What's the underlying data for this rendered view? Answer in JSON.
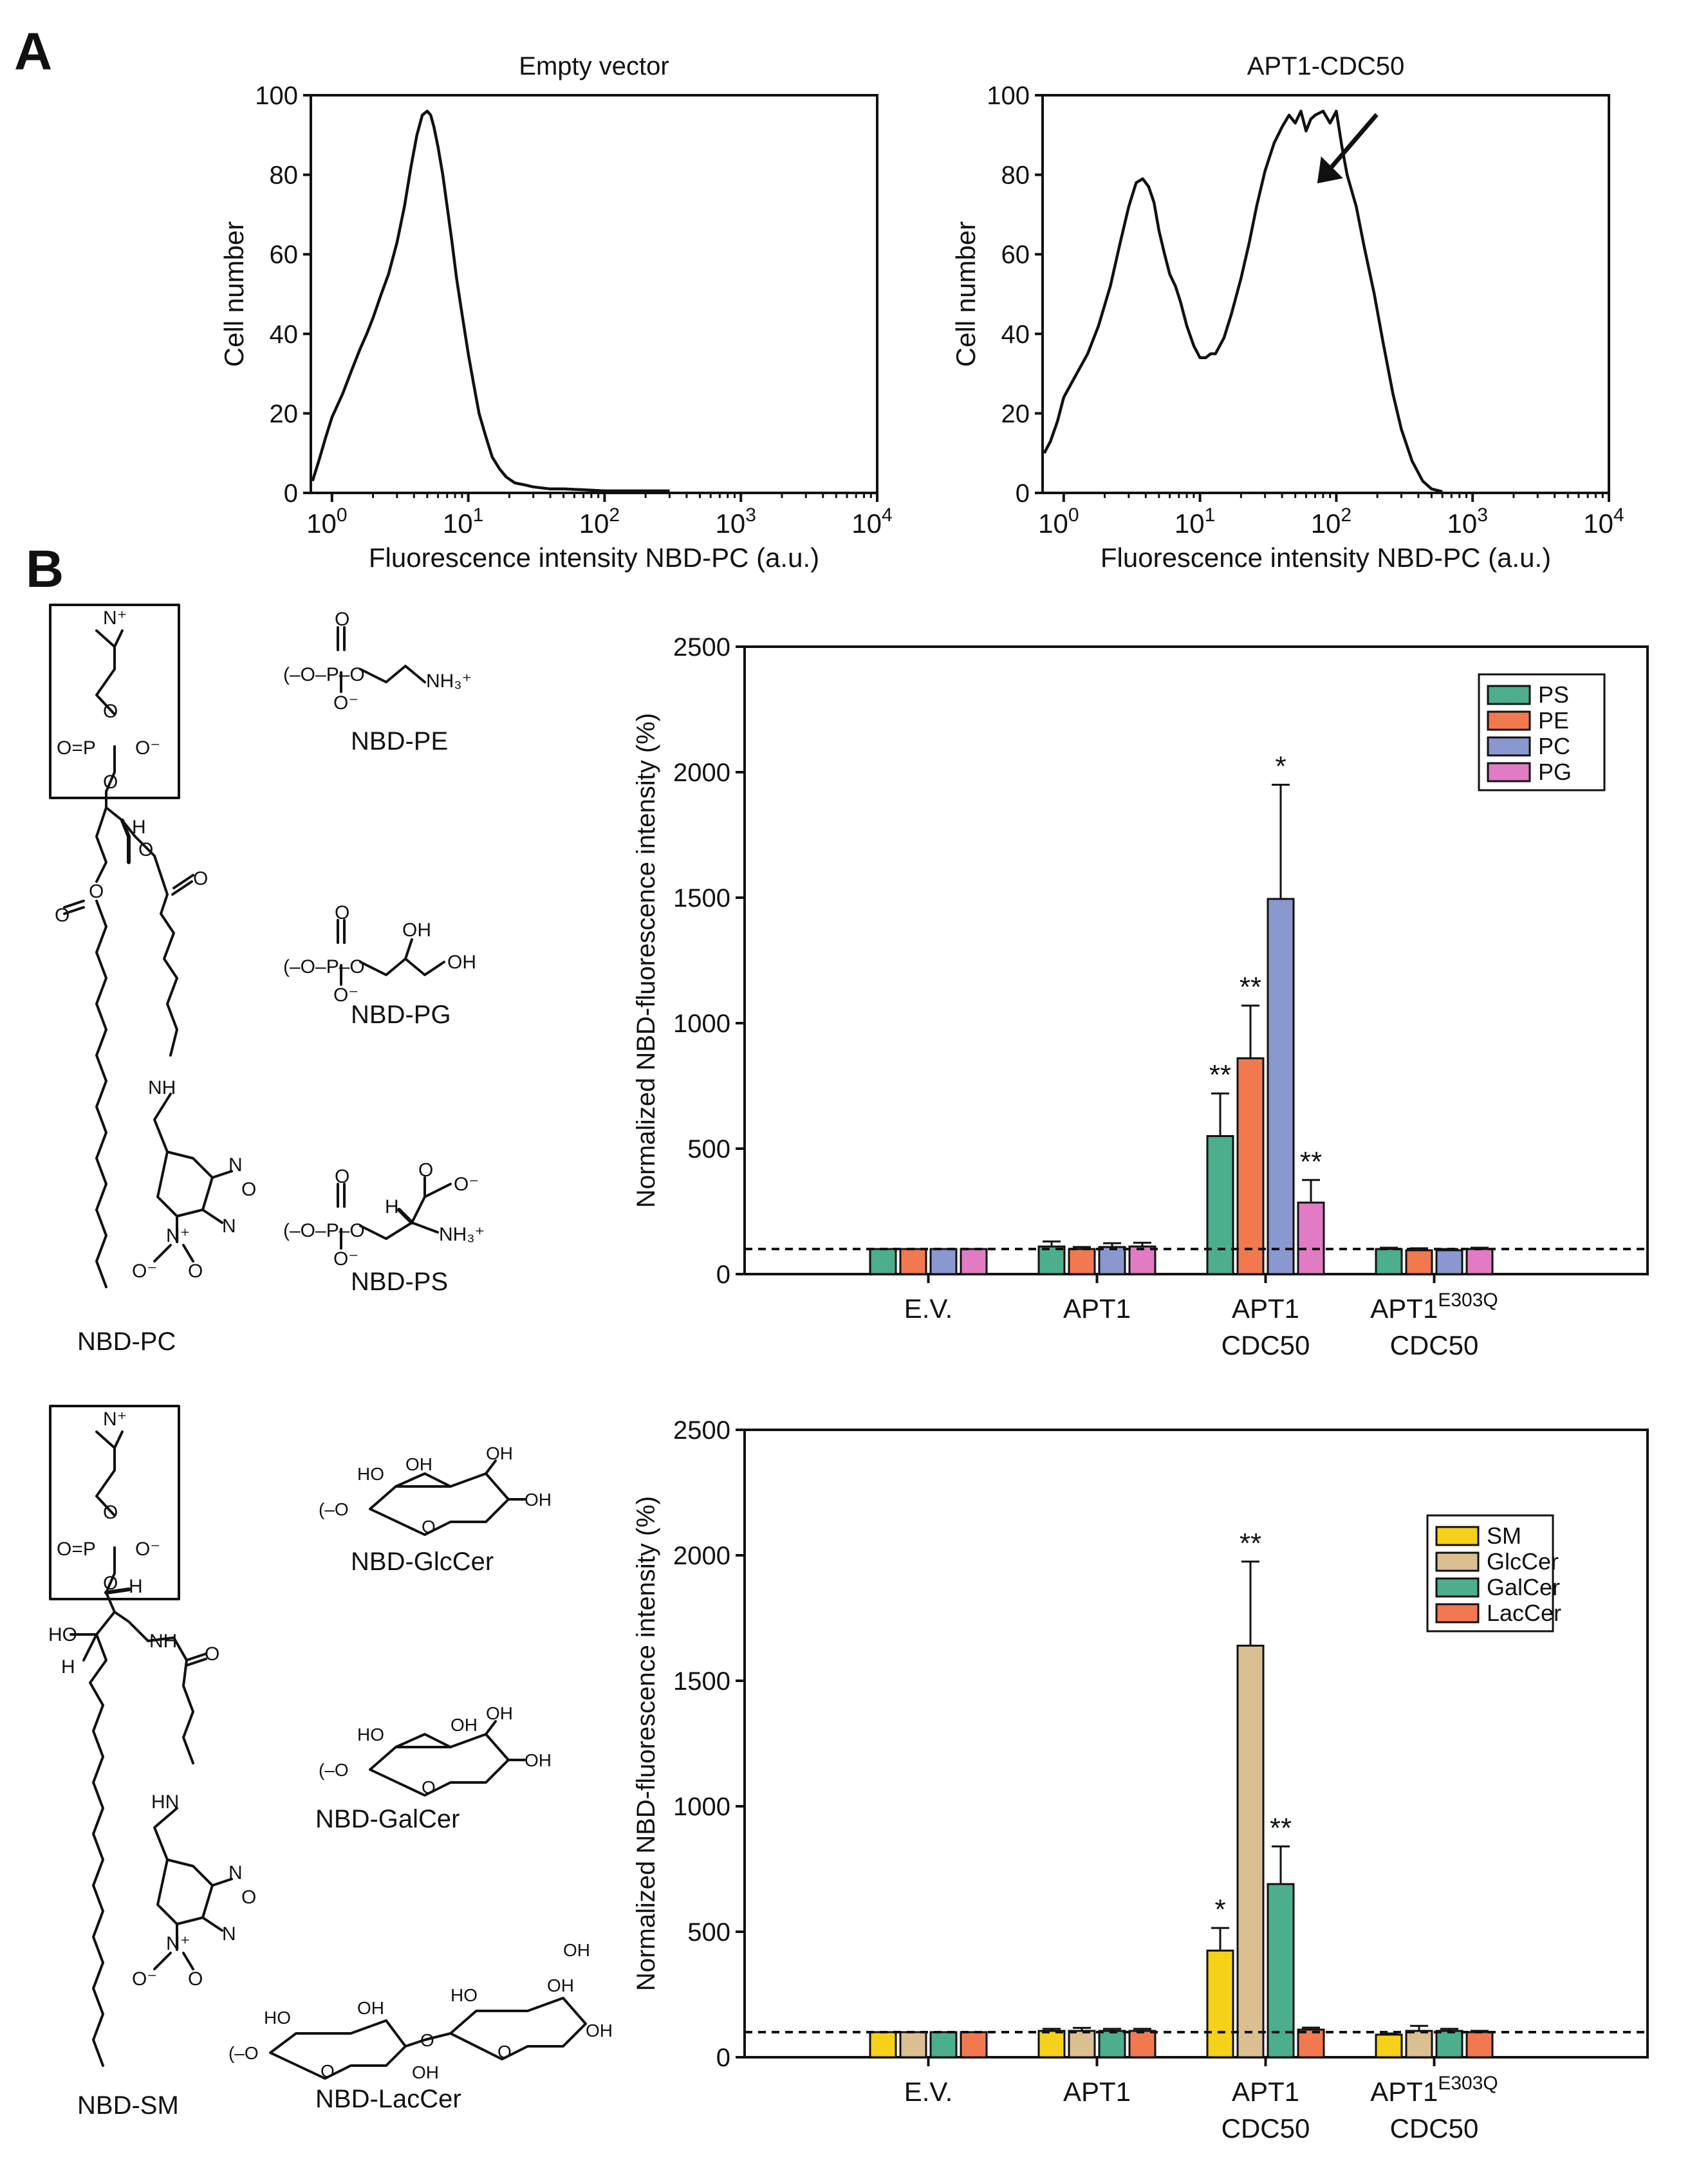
{
  "panels": {
    "a": "A",
    "b": "B"
  },
  "colors": {
    "PS": "#4cae8c",
    "PE": "#f2794f",
    "PC": "#8a98d0",
    "PG": "#e07bc4",
    "SM": "#f6d11a",
    "GlcCer": "#dbbf91",
    "GalCer": "#4cae8c",
    "LacCer": "#f2794f"
  },
  "chart_data": [
    {
      "type": "line",
      "title": "Empty vector",
      "xlabel": "Fluorescence intensity NBD-PC (a.u.)",
      "ylabel": "Cell number",
      "xscale": "log",
      "xlim": [
        0.7,
        10000
      ],
      "ylim": [
        0,
        100
      ],
      "yticks": [
        "0",
        "20",
        "40",
        "60",
        "80",
        "100"
      ],
      "xticks": [
        {
          "base": "10",
          "exp": "0"
        },
        {
          "base": "10",
          "exp": "1"
        },
        {
          "base": "10",
          "exp": "2"
        },
        {
          "base": "10",
          "exp": "3"
        },
        {
          "base": "10",
          "exp": "4"
        }
      ],
      "x": [
        0.72,
        0.8,
        0.9,
        1.0,
        1.2,
        1.4,
        1.6,
        1.8,
        2.0,
        2.3,
        2.6,
        3.0,
        3.4,
        3.8,
        4.2,
        4.6,
        5.0,
        5.3,
        5.6,
        6.0,
        6.5,
        7.0,
        7.6,
        8.2,
        9.0,
        10,
        11,
        12,
        13.5,
        15,
        17,
        19,
        22,
        26,
        30,
        40,
        50,
        70,
        100,
        150,
        300
      ],
      "y": [
        3,
        8,
        14,
        19,
        25,
        31,
        36,
        40,
        44,
        50,
        55,
        63,
        72,
        82,
        90,
        95,
        96,
        95,
        92,
        87,
        80,
        72,
        63,
        54,
        45,
        35,
        27,
        20,
        14,
        9,
        6,
        4,
        2.5,
        2,
        1.5,
        1,
        1,
        0.8,
        0.5,
        0.5,
        0.5
      ]
    },
    {
      "type": "line",
      "title": "APT1-CDC50",
      "xlabel": "Fluorescence intensity NBD-PC (a.u.)",
      "ylabel": "Cell number",
      "xscale": "log",
      "xlim": [
        0.7,
        10000
      ],
      "ylim": [
        0,
        100
      ],
      "yticks": [
        "0",
        "20",
        "40",
        "60",
        "80",
        "100"
      ],
      "xticks": [
        {
          "base": "10",
          "exp": "0"
        },
        {
          "base": "10",
          "exp": "1"
        },
        {
          "base": "10",
          "exp": "2"
        },
        {
          "base": "10",
          "exp": "3"
        },
        {
          "base": "10",
          "exp": "4"
        }
      ],
      "annotation": "arrow pointing to high-intensity peak",
      "x": [
        0.72,
        0.8,
        0.9,
        1.0,
        1.2,
        1.5,
        1.8,
        2.2,
        2.6,
        3.0,
        3.4,
        3.8,
        4.2,
        4.6,
        5.0,
        5.5,
        6.0,
        6.6,
        7.2,
        8,
        9,
        10,
        11,
        12,
        13,
        15,
        17,
        20,
        23,
        26,
        30,
        35,
        40,
        45,
        50,
        55,
        60,
        65,
        70,
        80,
        90,
        100,
        110,
        120,
        140,
        160,
        190,
        220,
        260,
        300,
        360,
        430,
        500,
        600
      ],
      "y": [
        10,
        13,
        18,
        24,
        29,
        35,
        42,
        52,
        63,
        72,
        78,
        79,
        77,
        73,
        66,
        60,
        55,
        52,
        48,
        42,
        37,
        34,
        34,
        35,
        35,
        39,
        45,
        54,
        63,
        72,
        81,
        88,
        92,
        95,
        93,
        96,
        91,
        94,
        95,
        96,
        93,
        96,
        87,
        80,
        72,
        62,
        50,
        38,
        25,
        16,
        8,
        3,
        1,
        0.3
      ]
    },
    {
      "type": "bar",
      "ylabel": "Normalized NBD-fluorescence intensity (%)",
      "ylim": [
        0,
        2500
      ],
      "yticks": [
        "0",
        "500",
        "1000",
        "1500",
        "2000",
        "2500"
      ],
      "reference_line": 100,
      "categories": [
        {
          "line1": "E.V.",
          "line2": "",
          "sup": ""
        },
        {
          "line1": "APT1",
          "line2": "",
          "sup": ""
        },
        {
          "line1": "APT1",
          "line2": "CDC50",
          "sup": ""
        },
        {
          "line1": "APT1",
          "line2": "CDC50",
          "sup": "E303Q"
        }
      ],
      "series": [
        {
          "name": "PS",
          "values": [
            100,
            110,
            550,
            100
          ],
          "errors": [
            0,
            20,
            170,
            5
          ],
          "significance": [
            "",
            "",
            "**",
            ""
          ]
        },
        {
          "name": "PE",
          "values": [
            100,
            100,
            860,
            95
          ],
          "errors": [
            0,
            8,
            210,
            8
          ],
          "significance": [
            "",
            "",
            "**",
            ""
          ]
        },
        {
          "name": "PC",
          "values": [
            100,
            108,
            1495,
            95
          ],
          "errors": [
            0,
            15,
            455,
            5
          ],
          "significance": [
            "",
            "",
            "*",
            ""
          ]
        },
        {
          "name": "PG",
          "values": [
            100,
            110,
            285,
            100
          ],
          "errors": [
            0,
            15,
            90,
            5
          ],
          "significance": [
            "",
            "",
            "**",
            ""
          ]
        }
      ]
    },
    {
      "type": "bar",
      "ylabel": "Normalized NBD-fluorescence intensity (%)",
      "ylim": [
        0,
        2500
      ],
      "yticks": [
        "0",
        "500",
        "1000",
        "1500",
        "2000",
        "2500"
      ],
      "reference_line": 100,
      "categories": [
        {
          "line1": "E.V.",
          "line2": "",
          "sup": ""
        },
        {
          "line1": "APT1",
          "line2": "",
          "sup": ""
        },
        {
          "line1": "APT1",
          "line2": "CDC50",
          "sup": ""
        },
        {
          "line1": "APT1",
          "line2": "CDC50",
          "sup": "E303Q"
        }
      ],
      "series": [
        {
          "name": "SM",
          "values": [
            100,
            105,
            425,
            90
          ],
          "errors": [
            0,
            8,
            90,
            5
          ],
          "significance": [
            "",
            "",
            "*",
            ""
          ]
        },
        {
          "name": "GlcCer",
          "values": [
            100,
            105,
            1640,
            105
          ],
          "errors": [
            0,
            12,
            335,
            20
          ],
          "significance": [
            "",
            "",
            "**",
            ""
          ]
        },
        {
          "name": "GalCer",
          "values": [
            100,
            105,
            690,
            105
          ],
          "errors": [
            0,
            8,
            150,
            8
          ],
          "significance": [
            "",
            "",
            "**",
            ""
          ]
        },
        {
          "name": "LacCer",
          "values": [
            100,
            105,
            110,
            100
          ],
          "errors": [
            0,
            8,
            8,
            5
          ],
          "significance": [
            "",
            "",
            "",
            ""
          ]
        }
      ]
    }
  ],
  "structures": {
    "pc": {
      "name": "NBD-PC",
      "n_plus": "N⁺",
      "o1": "O",
      "o_eq_p": "O=P",
      "o_minus": "O⁻",
      "o2": "O",
      "h": "H",
      "o3": "O",
      "o4": "O",
      "o5": "O",
      "o6": "O",
      "nh": "NH",
      "n1": "N",
      "n2": "N",
      "o_ring": "O",
      "no2_n": "N⁺",
      "no2_o1": "O⁻",
      "no2_o2": "O"
    },
    "pe": {
      "name": "NBD-PE",
      "head": "(–O–P–O",
      "nh3": "NH₃⁺",
      "o_top": "O",
      "o_bot": "O⁻"
    },
    "pg": {
      "name": "NBD-PG",
      "head": "(–O–P–O",
      "oh1": "OH",
      "oh2": "OH",
      "o_top": "O",
      "o_bot": "O⁻"
    },
    "ps": {
      "name": "NBD-PS",
      "head": "(–O–P–O",
      "nh3": "NH₃⁺",
      "h": "H",
      "coo": "O⁻",
      "o_top": "O",
      "o_bot": "O⁻",
      "o_acid": "O"
    },
    "sm": {
      "name": "NBD-SM",
      "n_plus": "N⁺",
      "o1": "O",
      "o_eq_p": "O=P",
      "o_minus": "O⁻",
      "o2": "O",
      "ho": "HO",
      "h1": "H",
      "h2": "H",
      "nh": "NH",
      "o_amide": "O",
      "hn": "HN",
      "n1": "N",
      "n2": "N",
      "o_ring": "O",
      "no2_n": "N⁺",
      "no2_o1": "O⁻",
      "no2_o2": "O"
    },
    "glccer": {
      "name": "NBD-GlcCer",
      "ring_o": "O",
      "oh1": "OH",
      "oh2": "OH",
      "oh3": "OH",
      "ho": "HO",
      "link": "(–O"
    },
    "galcer": {
      "name": "NBD-GalCer",
      "ring_o": "O",
      "oh1": "OH",
      "oh2": "OH",
      "oh3": "OH",
      "ho": "HO",
      "link": "(–O"
    },
    "laccer": {
      "name": "NBD-LacCer",
      "link": "(–O",
      "ring_o1": "O",
      "ring_o2": "O",
      "bridge": "O",
      "ho1": "HO",
      "oh1": "OH",
      "oh2": "OH",
      "ho2": "HO",
      "oh3": "OH",
      "oh4": "OH",
      "oh5": "OH"
    }
  }
}
